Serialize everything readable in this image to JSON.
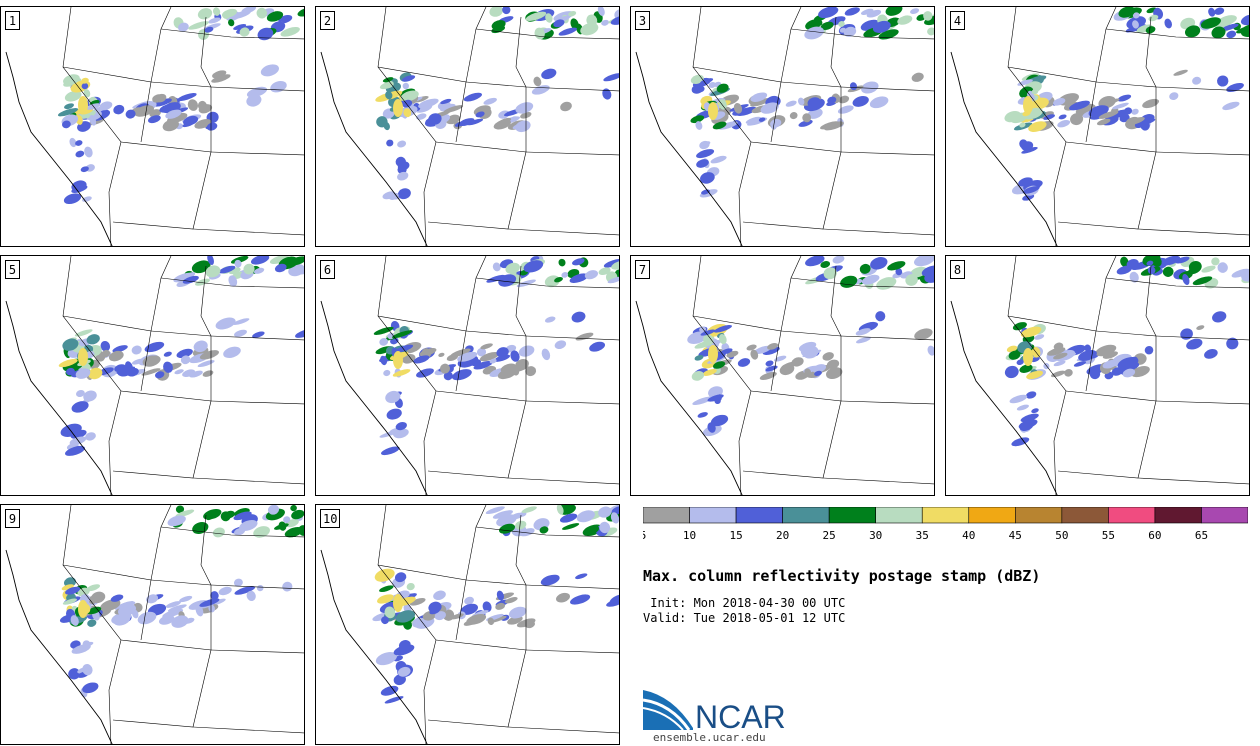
{
  "panels": [
    "1",
    "2",
    "3",
    "4",
    "5",
    "6",
    "7",
    "8",
    "9",
    "10"
  ],
  "legend": {
    "colors": [
      "#a0a0a0",
      "#b4bcec",
      "#5060d8",
      "#4a9098",
      "#00801c",
      "#b8dcc0",
      "#f0dc64",
      "#f0a814",
      "#b88430",
      "#8c5838",
      "#f04c80",
      "#601830",
      "#a848b0"
    ],
    "ticks": [
      "5",
      "10",
      "15",
      "20",
      "25",
      "30",
      "35",
      "40",
      "45",
      "50",
      "55",
      "60",
      "65"
    ]
  },
  "title": "Max. column reflectivity postage stamp (dBZ)",
  "init_line": " Init: Mon 2018-04-30 00 UTC",
  "valid_line": "Valid: Tue 2018-05-01 12 UTC",
  "logo": {
    "text": "NCAR",
    "url": "ensemble.ucar.edu"
  }
}
